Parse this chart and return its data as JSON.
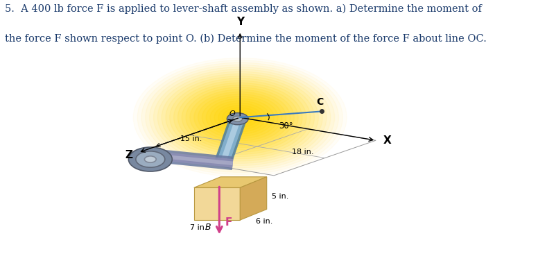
{
  "title_line1": "5.  A 400 lb force F is applied to lever-shaft assembly as shown. a) Determine the moment of",
  "title_line2": "the force F shown respect to point O. (b) Determine the moment of the force F about line OC.",
  "title_color": "#1a3a6b",
  "title_fontsize": 10.5,
  "bg_color": "#ffffff",
  "Y_label": "Y",
  "X_label": "X",
  "Z_label": "Z",
  "glow_color": "#ffd700",
  "oc_line_color": "#3a7abf",
  "angle_label": "30°",
  "force_arrow_color": "#d0408a",
  "force_label": "F",
  "dim_15": "15 in.",
  "dim_18": "18 in.",
  "dim_5": "5 in.",
  "dim_6": "6 in.",
  "dim_7": "7 in.",
  "label_B": "B",
  "label_C": "C",
  "label_O": "O",
  "ox": 0.495,
  "oy": 0.565
}
